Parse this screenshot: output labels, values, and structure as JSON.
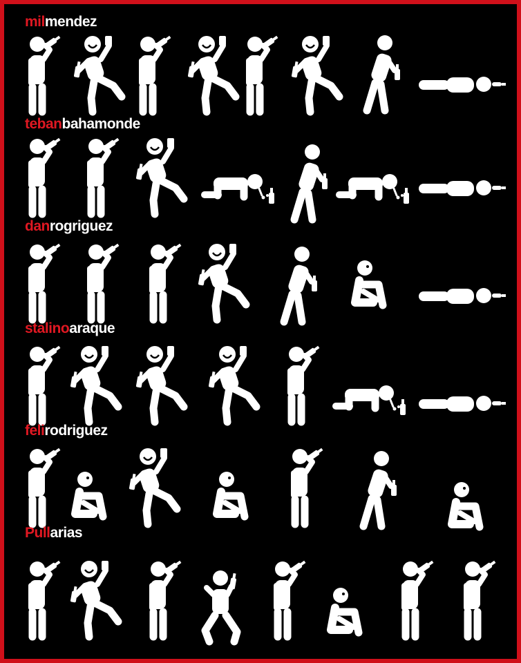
{
  "colors": {
    "frame": "#d0101a",
    "background": "#000000",
    "figure": "#ffffff",
    "name_accent": "#e01822"
  },
  "rows": [
    {
      "name_red": "mil",
      "name_white": "mendez",
      "figures": [
        "drinking",
        "dancing",
        "drinking",
        "dancing",
        "drinking",
        "dancing",
        "staggering",
        "lying"
      ]
    },
    {
      "name_red": "teban",
      "name_white": "bahamonde",
      "figures": [
        "drinking",
        "drinking",
        "dancing",
        "crawling-vomiting",
        "staggering",
        "crawling-vomiting",
        "lying"
      ]
    },
    {
      "name_red": "dan",
      "name_white": "rogriguez",
      "figures": [
        "drinking",
        "drinking",
        "drinking",
        "dancing",
        "staggering",
        "sitting",
        "lying"
      ]
    },
    {
      "name_red": "stalino",
      "name_white": "araque",
      "figures": [
        "drinking",
        "dancing",
        "dancing",
        "dancing",
        "drinking",
        "crawling-vomiting",
        "lying"
      ]
    },
    {
      "name_red": "feli",
      "name_white": "rodriguez",
      "figures": [
        "drinking",
        "sitting",
        "dancing",
        "sitting",
        "drinking",
        "staggering",
        "sitting"
      ]
    },
    {
      "name_red": "Pull",
      "name_white": "arias",
      "figures": [
        "drinking",
        "dancing",
        "drinking",
        "kneeling",
        "drinking",
        "sitting",
        "drinking",
        "drinking"
      ]
    }
  ]
}
